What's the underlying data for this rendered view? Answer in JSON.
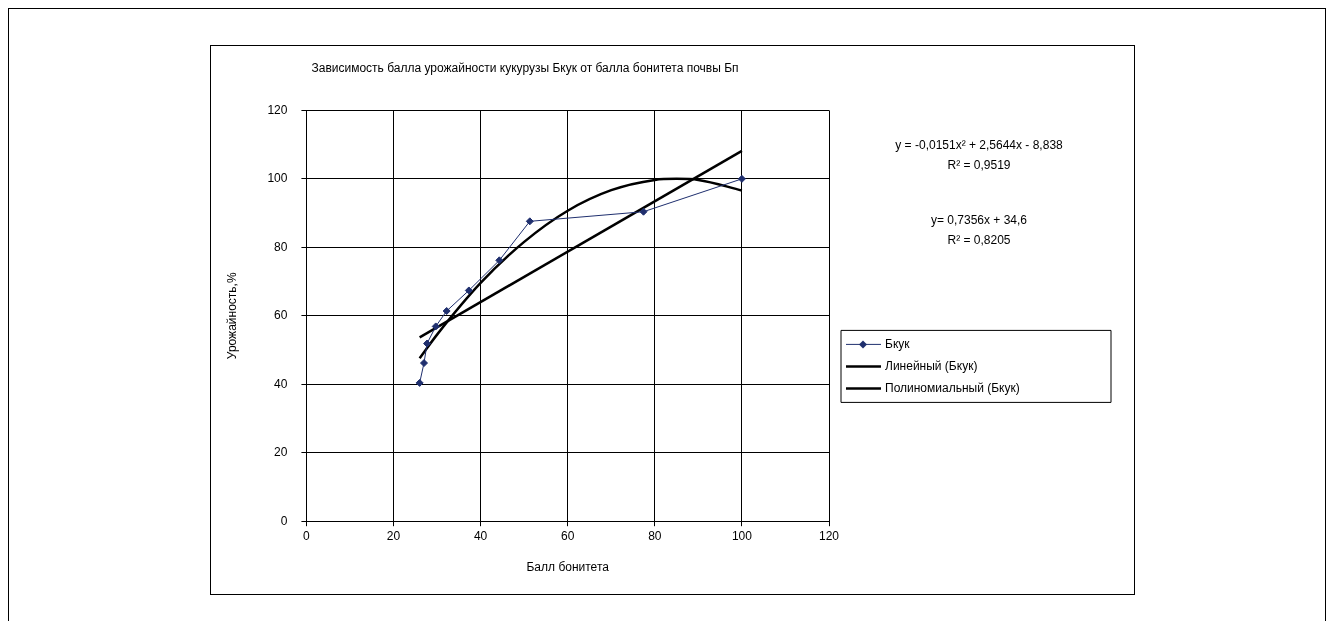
{
  "chart_data": {
    "type": "line",
    "title": "Зависимость балла урожайности кукурузы Бкук от балла бонитета почвы Бп",
    "xlabel": "Балл бонитета",
    "ylabel": "Урожайность,%",
    "xlim": [
      0,
      120
    ],
    "xticks": [
      0,
      20,
      40,
      60,
      80,
      100,
      120
    ],
    "ylim": [
      0,
      120
    ],
    "yticks": [
      0,
      20,
      40,
      60,
      80,
      100,
      120
    ],
    "grid": true,
    "legend": "right",
    "marker": "diamond",
    "annotations": [
      "y = -0,0151x² + 2,5644x - 8,838",
      "R² = 0,9519",
      "y= 0,7356x + 34,6",
      "R² = 0,8205"
    ],
    "series": [
      {
        "name": "Бкук",
        "color": "#1f2f6e",
        "x": [
          26,
          27,
          27.7,
          29.7,
          32.2,
          37.3,
          44.3,
          51.3,
          77.4,
          100
        ],
        "values": [
          40.4,
          46.2,
          51.9,
          56.9,
          61.4,
          67.4,
          76.2,
          87.6,
          90.4,
          100
        ]
      },
      {
        "name": "Линейный (Бкук)",
        "color": "#000000",
        "marker": "none",
        "x": [
          26,
          100
        ],
        "values": [
          53.7,
          108.2
        ]
      },
      {
        "name": "Полиномиальный (Бкук)",
        "color": "#000000",
        "marker": "none",
        "x": [
          26,
          30,
          40,
          50,
          60,
          70,
          80,
          85,
          90,
          100
        ],
        "values": [
          47.6,
          54.5,
          69.6,
          81.6,
          90.7,
          96.7,
          99.7,
          100.0,
          99.7,
          96.6
        ]
      }
    ]
  }
}
